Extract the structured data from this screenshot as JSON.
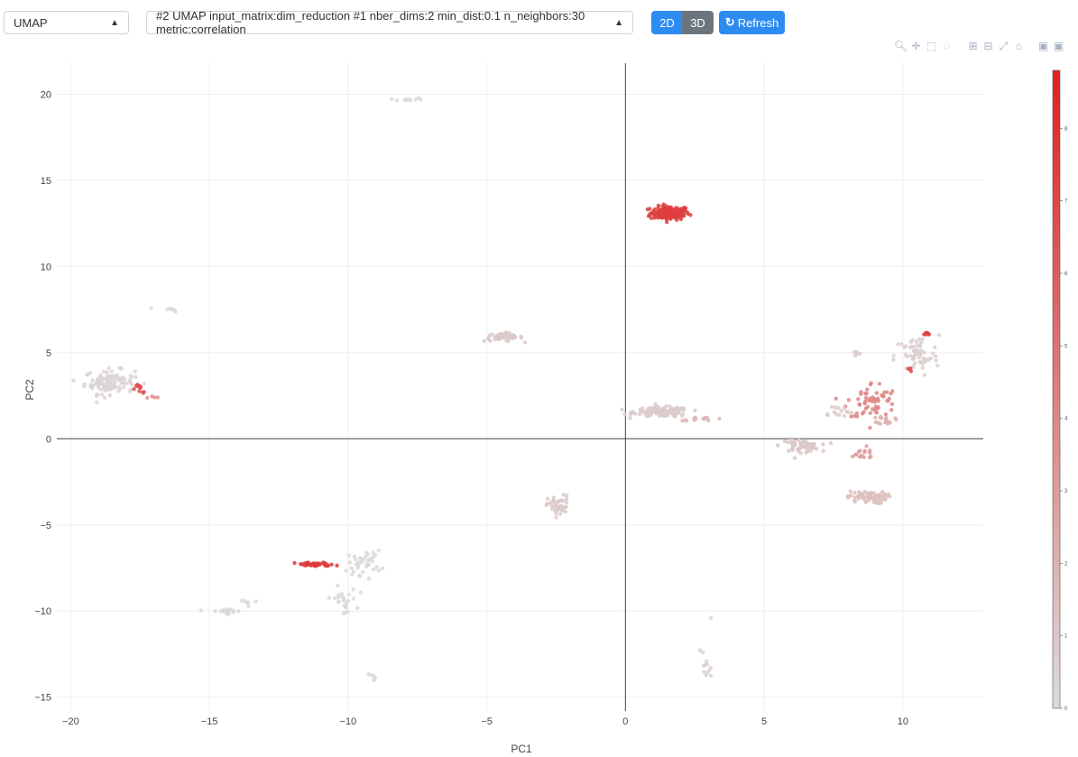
{
  "controls": {
    "method_select": "UMAP",
    "run_select": "#2 UMAP input_matrix:dim_reduction #1 nber_dims:2 min_dist:0.1 n_neighbors:30 metric:correlation",
    "btn_2d": "2D",
    "btn_3d": "3D",
    "refresh_label": "Refresh"
  },
  "modebar_icons": [
    "zoom-icon",
    "pan-icon",
    "box-select-icon",
    "lasso-icon",
    "zoom-in-icon",
    "zoom-out-icon",
    "autoscale-icon",
    "home-icon",
    "camera-icon",
    "camera-svg-icon"
  ],
  "colors": {
    "accent": "#2d8cf0",
    "secondary": "#6c757d",
    "low": "#dcdcdc",
    "high": "#e02020"
  },
  "chart_data": {
    "type": "scatter",
    "xlabel": "PC1",
    "ylabel": "PC2",
    "xlim": [
      -20.5,
      12.9
    ],
    "ylim": [
      -15.8,
      21.8
    ],
    "x_ticks": [
      -20,
      -15,
      -10,
      -5,
      0,
      5,
      10
    ],
    "y_ticks": [
      -15,
      -10,
      -5,
      0,
      5,
      10,
      15,
      20
    ],
    "x_tick_labels": [
      "−20",
      "−15",
      "−10",
      "−5",
      "0",
      "5",
      "10"
    ],
    "y_tick_labels": [
      "−15",
      "−10",
      "−5",
      "0",
      "5",
      "10",
      "15",
      "20"
    ],
    "grid": true,
    "colorbar": {
      "range": [
        0,
        8.8
      ],
      "ticks": [
        0,
        1,
        2,
        3,
        4,
        5,
        6,
        7,
        8
      ],
      "colorscale": [
        "#dcdcdc",
        "#e02020"
      ]
    },
    "clusters": [
      {
        "x": 1.6,
        "y": 13.1,
        "sx": 0.35,
        "sy": 0.2,
        "n": 160,
        "value": 7.4
      },
      {
        "x": -7.9,
        "y": 19.7,
        "sx": 0.3,
        "sy": 0.05,
        "n": 12,
        "value": 0.2
      },
      {
        "x": -16.4,
        "y": 7.5,
        "sx": 0.2,
        "sy": 0.06,
        "n": 8,
        "value": 0.2
      },
      {
        "x": -18.6,
        "y": 3.3,
        "sx": 0.45,
        "sy": 0.35,
        "n": 110,
        "value": 0.4
      },
      {
        "x": -17.5,
        "y": 2.9,
        "sx": 0.15,
        "sy": 0.12,
        "n": 10,
        "value": 6.8
      },
      {
        "x": -17.0,
        "y": 2.4,
        "sx": 0.15,
        "sy": 0.1,
        "n": 4,
        "value": 3.5
      },
      {
        "x": -4.4,
        "y": 5.9,
        "sx": 0.35,
        "sy": 0.12,
        "n": 50,
        "value": 0.9
      },
      {
        "x": 1.3,
        "y": 1.55,
        "sx": 0.5,
        "sy": 0.14,
        "n": 140,
        "value": 0.8
      },
      {
        "x": 2.8,
        "y": 1.15,
        "sx": 0.45,
        "sy": 0.05,
        "n": 14,
        "value": 1.8
      },
      {
        "x": 6.3,
        "y": -0.4,
        "sx": 0.35,
        "sy": 0.18,
        "n": 60,
        "value": 1.0
      },
      {
        "x": 10.5,
        "y": 4.8,
        "sx": 0.4,
        "sy": 0.6,
        "n": 60,
        "value": 0.6
      },
      {
        "x": 10.9,
        "y": 6.1,
        "sx": 0.08,
        "sy": 0.05,
        "n": 8,
        "value": 7.2
      },
      {
        "x": 10.3,
        "y": 4.0,
        "sx": 0.06,
        "sy": 0.06,
        "n": 3,
        "value": 7.0
      },
      {
        "x": 8.3,
        "y": 5.0,
        "sx": 0.07,
        "sy": 0.12,
        "n": 6,
        "value": 0.8
      },
      {
        "x": 8.9,
        "y": 2.2,
        "sx": 0.45,
        "sy": 0.55,
        "n": 60,
        "value": 4.0
      },
      {
        "x": 9.4,
        "y": 1.1,
        "sx": 0.15,
        "sy": 0.12,
        "n": 20,
        "value": 2.0
      },
      {
        "x": 7.6,
        "y": 1.6,
        "sx": 0.3,
        "sy": 0.2,
        "n": 14,
        "value": 0.8
      },
      {
        "x": 8.5,
        "y": -0.9,
        "sx": 0.3,
        "sy": 0.2,
        "n": 16,
        "value": 3.0
      },
      {
        "x": 8.7,
        "y": -3.4,
        "sx": 0.35,
        "sy": 0.18,
        "n": 70,
        "value": 1.3
      },
      {
        "x": -2.4,
        "y": -3.9,
        "sx": 0.2,
        "sy": 0.3,
        "n": 45,
        "value": 0.9
      },
      {
        "x": -11.2,
        "y": -7.3,
        "sx": 0.35,
        "sy": 0.06,
        "n": 45,
        "value": 7.6
      },
      {
        "x": -9.4,
        "y": -7.2,
        "sx": 0.3,
        "sy": 0.35,
        "n": 40,
        "value": 0.2
      },
      {
        "x": -10.2,
        "y": -9.4,
        "sx": 0.25,
        "sy": 0.4,
        "n": 25,
        "value": 0.2
      },
      {
        "x": -14.4,
        "y": -10.0,
        "sx": 0.3,
        "sy": 0.08,
        "n": 20,
        "value": 0.2
      },
      {
        "x": -13.5,
        "y": -9.4,
        "sx": 0.2,
        "sy": 0.1,
        "n": 6,
        "value": 0.2
      },
      {
        "x": -9.1,
        "y": -13.9,
        "sx": 0.1,
        "sy": 0.1,
        "n": 6,
        "value": 0.2
      },
      {
        "x": 2.9,
        "y": -13.4,
        "sx": 0.1,
        "sy": 0.3,
        "n": 10,
        "value": 0.5
      },
      {
        "x": 2.7,
        "y": -12.4,
        "sx": 0.06,
        "sy": 0.08,
        "n": 3,
        "value": 0.3
      },
      {
        "x": 3.1,
        "y": -10.3,
        "sx": 0.04,
        "sy": 0.04,
        "n": 1,
        "value": 0.3
      }
    ]
  }
}
